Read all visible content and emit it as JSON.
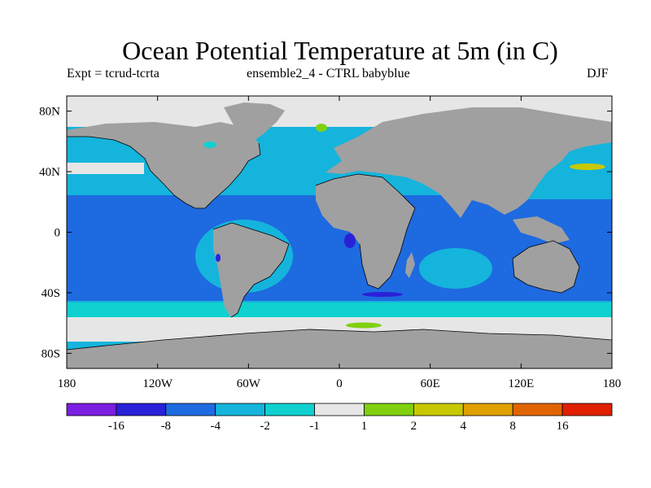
{
  "title": "Ocean Potential Temperature at 5m (in C)",
  "subtitle_left": "Expt = tcrud-tcrta",
  "subtitle_center": "ensemble2_4 - CTRL babyblue",
  "subtitle_right": "DJF",
  "map": {
    "lon_range": [
      -180,
      180
    ],
    "lat_range": [
      -90,
      90
    ],
    "x_ticks": [
      {
        "value": -180,
        "label": "180"
      },
      {
        "value": -120,
        "label": "120W"
      },
      {
        "value": -60,
        "label": "60W"
      },
      {
        "value": 0,
        "label": "0"
      },
      {
        "value": 60,
        "label": "60E"
      },
      {
        "value": 120,
        "label": "120E"
      },
      {
        "value": 180,
        "label": "180"
      }
    ],
    "y_ticks": [
      {
        "value": 80,
        "label": "80N"
      },
      {
        "value": 40,
        "label": "40N"
      },
      {
        "value": 0,
        "label": "0"
      },
      {
        "value": -40,
        "label": "40S"
      },
      {
        "value": -80,
        "label": "80S"
      }
    ],
    "land_color": "#a0a0a0",
    "missing_color": "#a0a0a0"
  },
  "colorbar": {
    "levels": [
      "-16",
      "-8",
      "-4",
      "-2",
      "-1",
      "1",
      "2",
      "4",
      "8",
      "16"
    ],
    "colors": [
      "#7a1ee0",
      "#2a20d8",
      "#1e6ae0",
      "#15b4dc",
      "#10d0d0",
      "#e6e6e6",
      "#80d010",
      "#c8c800",
      "#e0a000",
      "#e06400",
      "#e02000"
    ]
  }
}
